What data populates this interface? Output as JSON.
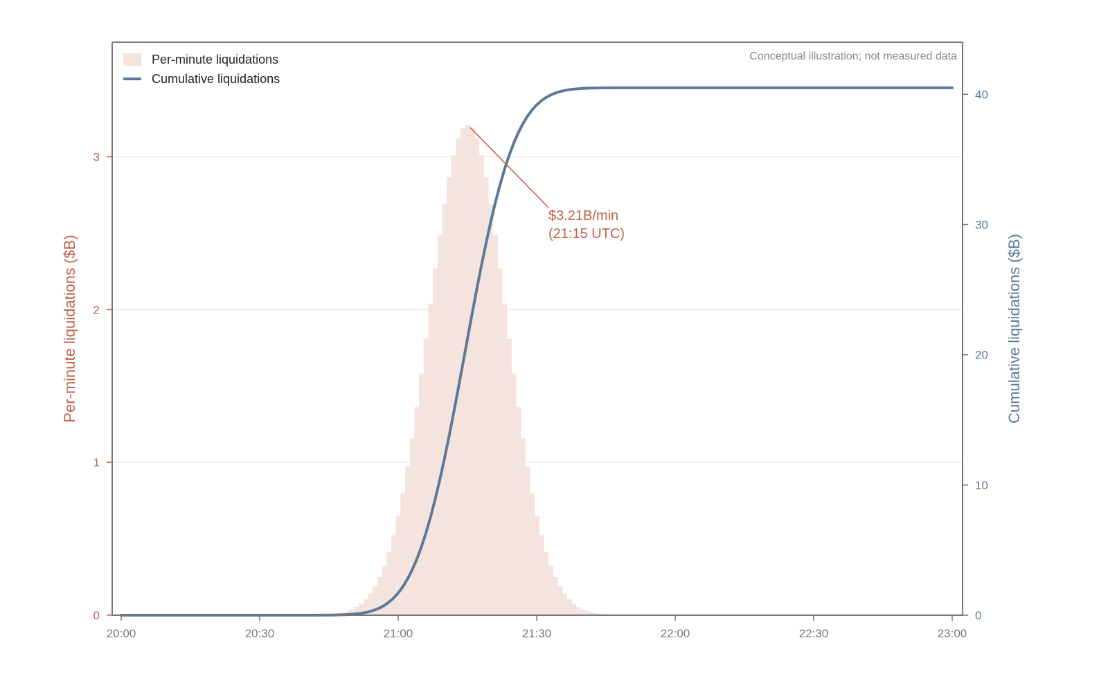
{
  "colors": {
    "per_minute_fill": "#f5e4de",
    "per_minute_axis": "#c0624a",
    "cumulative_line": "#5b7a99",
    "frame": "#777777",
    "grid": "#e9e9e9",
    "x_tick_text": "#777777"
  },
  "chart_data": {
    "type": "bar+line",
    "note": "Conceptual illustration; not measured data",
    "x_ticks": [
      "20:00",
      "20:30",
      "21:00",
      "21:30",
      "22:00",
      "22:30",
      "23:00"
    ],
    "x_range_minutes": [
      0,
      180
    ],
    "y_left": {
      "label": "Per-minute liquidations ($B)",
      "ticks": [
        0,
        1,
        2,
        3
      ],
      "range": [
        0,
        3.75
      ]
    },
    "y_right": {
      "label": "Cumulative liquidations ($B)",
      "ticks": [
        0,
        10,
        20,
        30,
        40
      ],
      "range": [
        0,
        44
      ]
    },
    "legend": {
      "placement": "top-left",
      "entries": [
        {
          "label": "Per-minute liquidations",
          "kind": "bar"
        },
        {
          "label": "Cumulative liquidations",
          "kind": "line"
        }
      ]
    },
    "series": [
      {
        "name": "Per-minute liquidations",
        "kind": "bar",
        "axis": "left",
        "peak": {
          "time": "21:15",
          "value": 3.21
        },
        "sigma_minutes": 8.4,
        "x_minutes_start": 0,
        "x_minutes_end": 179
      },
      {
        "name": "Cumulative liquidations",
        "kind": "line",
        "axis": "right",
        "final_value": 40.5,
        "x_minutes_end": 180
      }
    ],
    "annotation": {
      "line1": "$3.21B/min",
      "line2": "(21:15 UTC)",
      "time": "21:15",
      "value": 3.21
    }
  }
}
